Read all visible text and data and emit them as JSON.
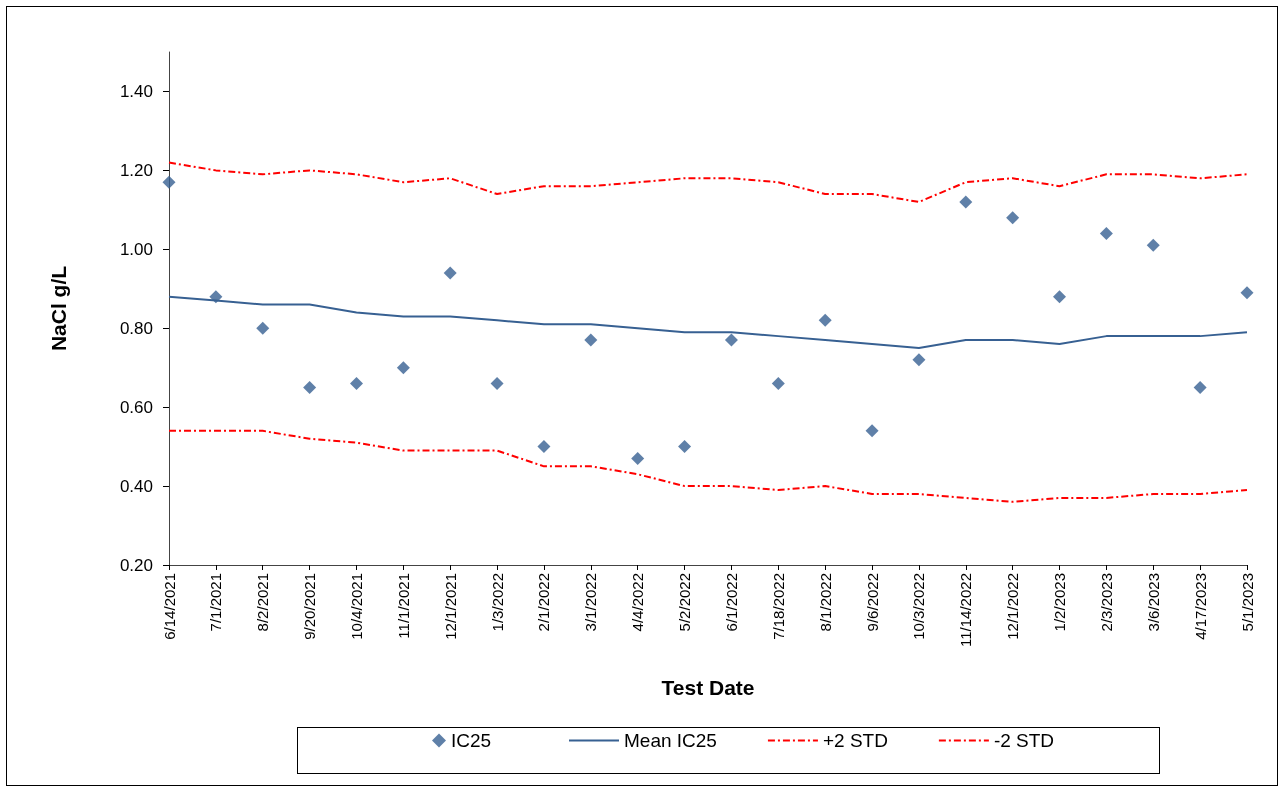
{
  "chart_data": {
    "type": "scatter",
    "xlabel": "Test Date",
    "ylabel": "NaCl g/L",
    "categories": [
      "6/14/2021",
      "7/1/2021",
      "8/2/2021",
      "9/20/2021",
      "10/4/2021",
      "11/1/2021",
      "12/1/2021",
      "1/3/2022",
      "2/1/2022",
      "3/1/2022",
      "4/4/2022",
      "5/2/2022",
      "6/1/2022",
      "7/18/2022",
      "8/1/2022",
      "9/6/2022",
      "10/3/2022",
      "11/14/2022",
      "12/1/2022",
      "1/2/2023",
      "2/3/2023",
      "3/6/2023",
      "4/17/2023",
      "5/1/2023"
    ],
    "series": [
      {
        "name": "IC25",
        "type": "scatter",
        "color": "#376092",
        "marker": "diamond",
        "values": [
          1.17,
          0.88,
          0.8,
          0.65,
          0.66,
          0.7,
          0.94,
          0.66,
          0.5,
          0.77,
          0.47,
          0.5,
          0.77,
          0.66,
          0.82,
          0.54,
          0.72,
          1.12,
          1.08,
          0.88,
          1.04,
          1.01,
          0.65,
          0.89
        ]
      },
      {
        "name": "Mean IC25",
        "type": "line",
        "color": "#376092",
        "marker": "none",
        "line_style": "solid",
        "values": [
          0.88,
          0.87,
          0.86,
          0.86,
          0.84,
          0.83,
          0.83,
          0.82,
          0.81,
          0.81,
          0.8,
          0.79,
          0.79,
          0.78,
          0.77,
          0.76,
          0.75,
          0.77,
          0.77,
          0.76,
          0.78,
          0.78,
          0.78,
          0.79
        ]
      },
      {
        "name": "+2 STD",
        "type": "line",
        "color": "#ff0000",
        "marker": "none",
        "line_style": "dashed",
        "values": [
          1.22,
          1.2,
          1.19,
          1.2,
          1.19,
          1.17,
          1.18,
          1.14,
          1.16,
          1.16,
          1.17,
          1.18,
          1.18,
          1.17,
          1.14,
          1.14,
          1.12,
          1.17,
          1.18,
          1.16,
          1.19,
          1.19,
          1.18,
          1.19
        ]
      },
      {
        "name": "-2 STD",
        "type": "line",
        "color": "#ff0000",
        "marker": "none",
        "line_style": "dashed",
        "values": [
          0.54,
          0.54,
          0.54,
          0.52,
          0.51,
          0.49,
          0.49,
          0.49,
          0.45,
          0.45,
          0.43,
          0.4,
          0.4,
          0.39,
          0.4,
          0.38,
          0.38,
          0.37,
          0.36,
          0.37,
          0.37,
          0.38,
          0.38,
          0.39
        ]
      }
    ],
    "ylim": [
      0.2,
      1.5
    ],
    "yticks": [
      {
        "value": 0.2,
        "label": "0.20"
      },
      {
        "value": 0.4,
        "label": "0.40"
      },
      {
        "value": 0.6,
        "label": "0.60"
      },
      {
        "value": 0.8,
        "label": "0.80"
      },
      {
        "value": 1.0,
        "label": "1.00"
      },
      {
        "value": 1.2,
        "label": "1.20"
      },
      {
        "value": 1.4,
        "label": "1.40"
      }
    ],
    "grid": false,
    "legend": "bottom"
  }
}
